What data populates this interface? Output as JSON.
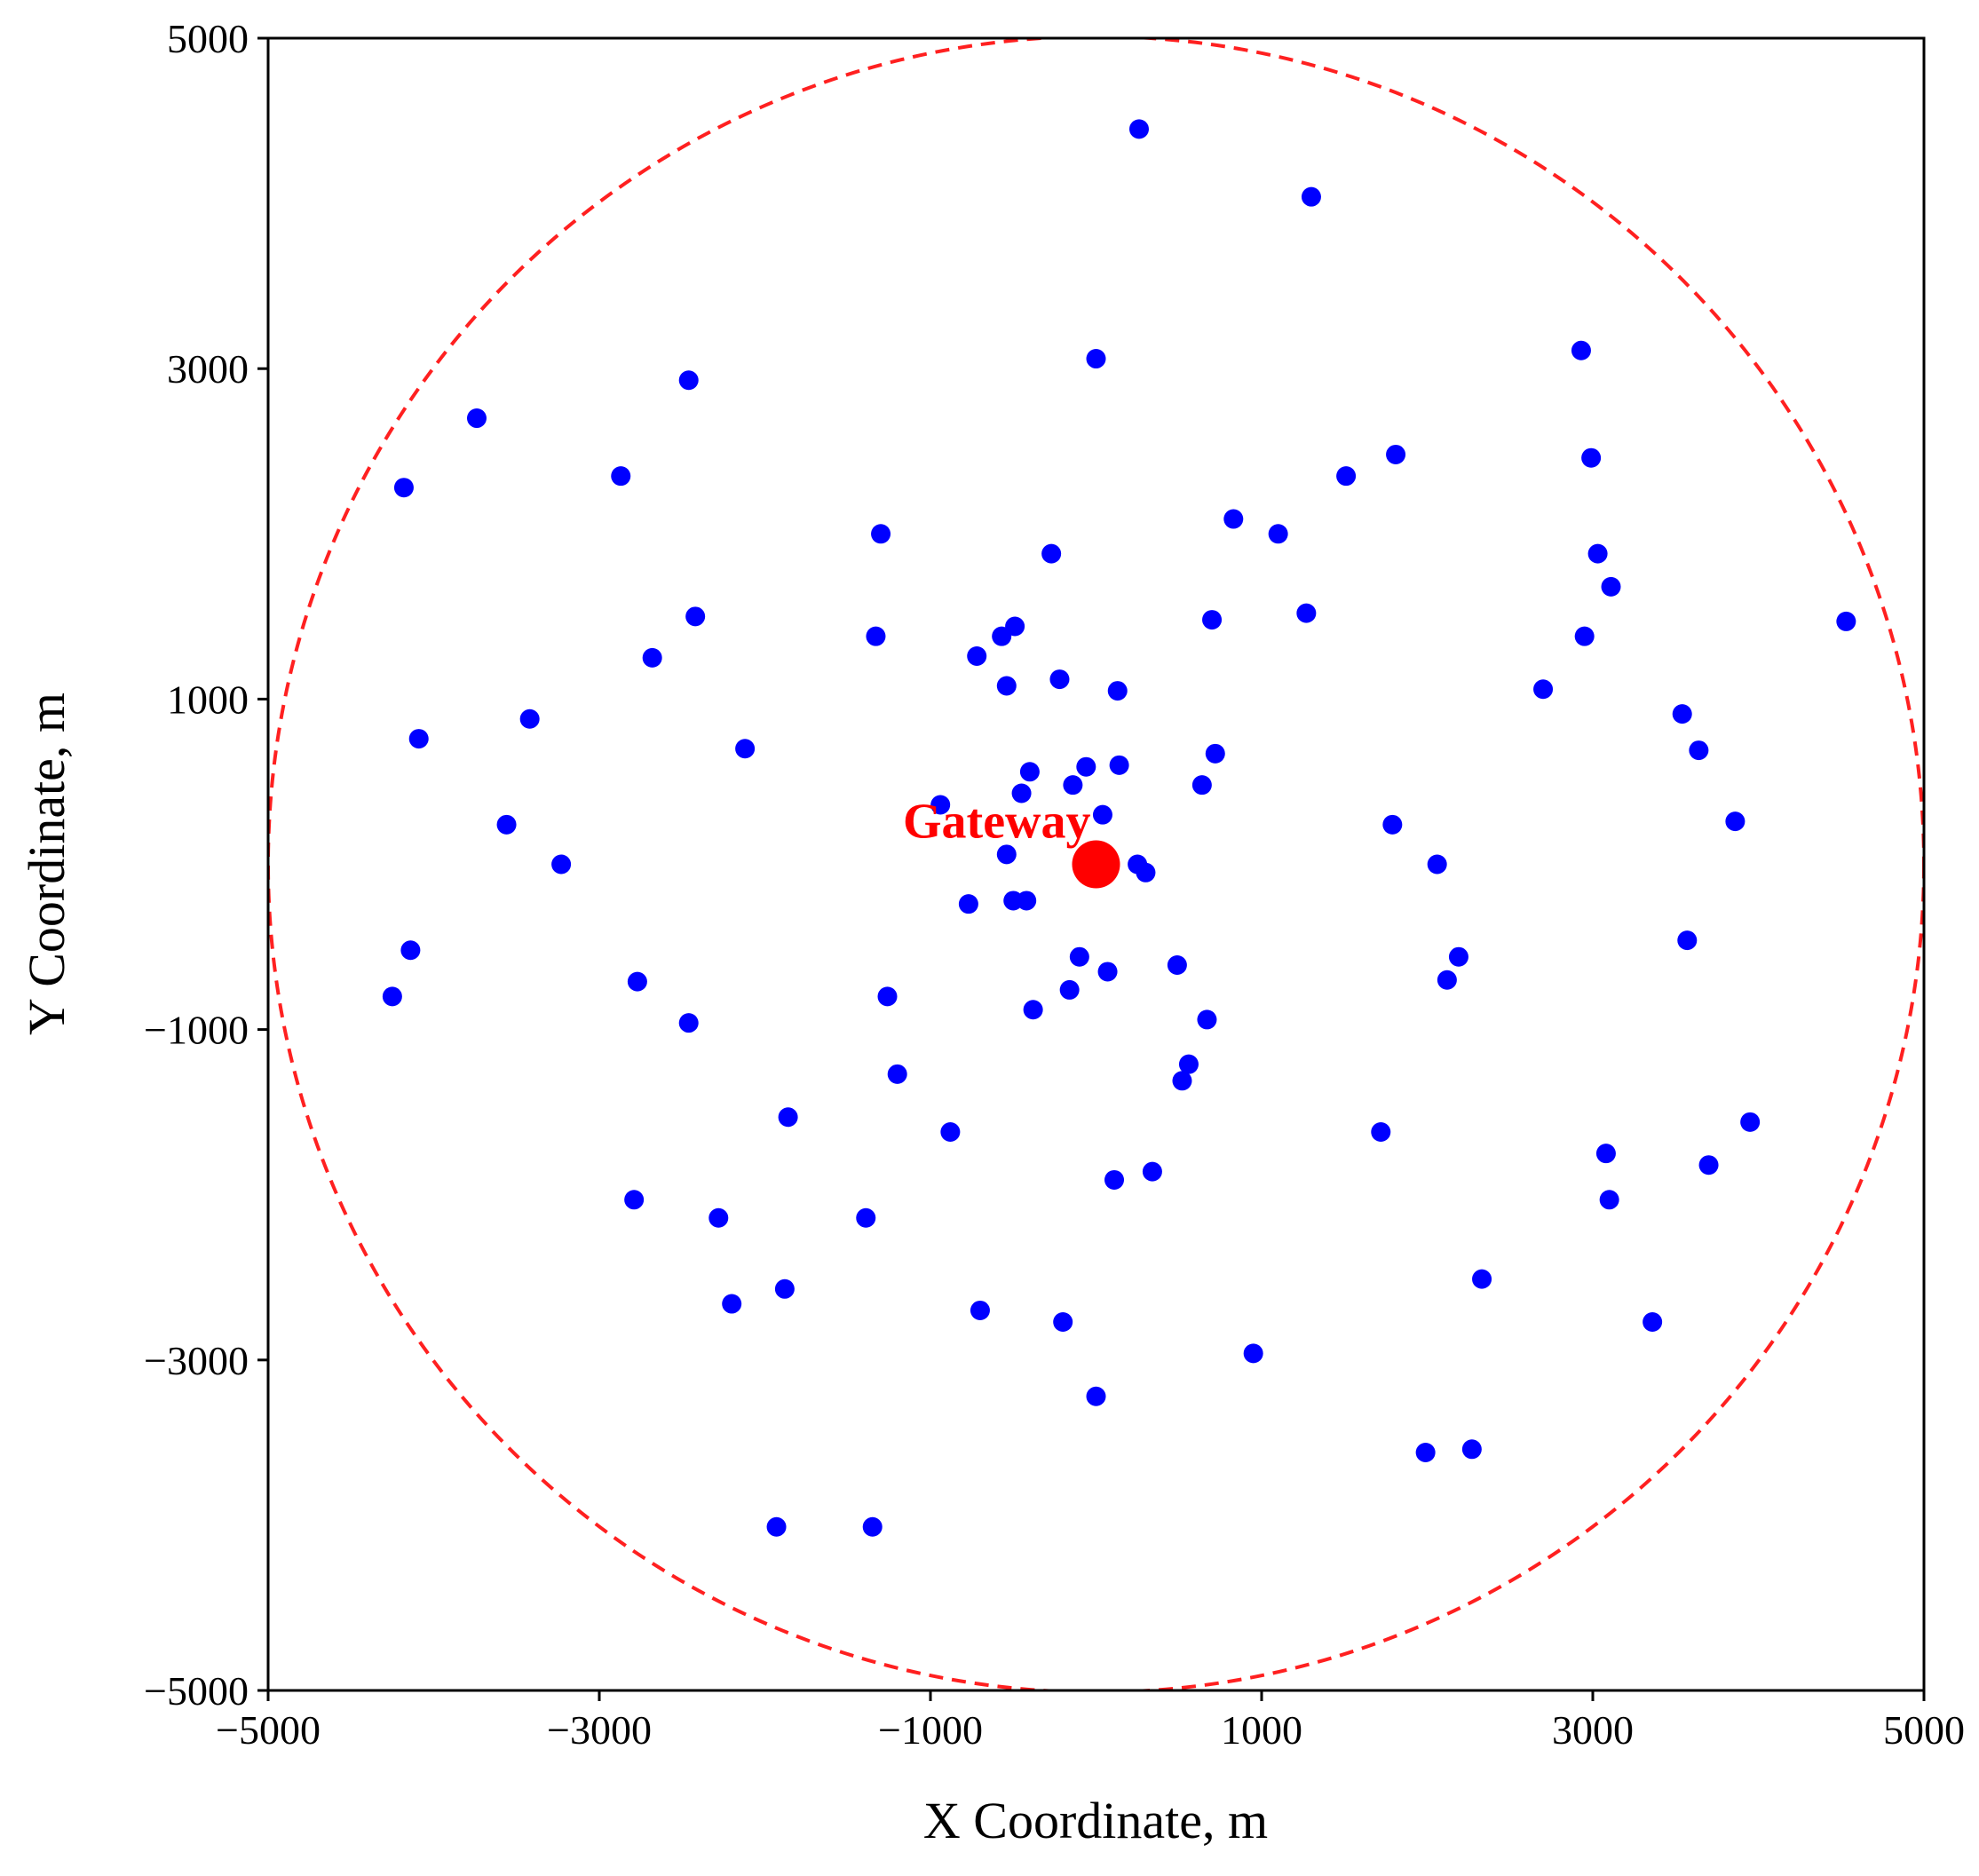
{
  "chart_data": {
    "type": "scatter",
    "xlabel": "X Coordinate, m",
    "ylabel": "Y Coordinate, m",
    "xlim": [
      -5000,
      5000
    ],
    "ylim": [
      -5000,
      5000
    ],
    "xticks": [
      -5000,
      -3000,
      -1000,
      1000,
      3000,
      5000
    ],
    "yticks": [
      -5000,
      -3000,
      -1000,
      1000,
      3000,
      5000
    ],
    "xtick_labels": [
      "−5000",
      "−3000",
      "−1000",
      "1000",
      "3000",
      "5000"
    ],
    "ytick_labels": [
      "−5000",
      "−3000",
      "−1000",
      "1000",
      "3000",
      "5000"
    ],
    "grid": false,
    "boundary_circle": {
      "center": [
        0,
        0
      ],
      "radius": 5000,
      "color": "#ff2020",
      "style": "dashed"
    },
    "gateway": {
      "label": "Gateway",
      "x": 0,
      "y": 0,
      "color": "#ff0000"
    },
    "nodes": {
      "color": "#0000ff",
      "points": [
        [
          260,
          4450
        ],
        [
          1300,
          4040
        ],
        [
          0,
          3060
        ],
        [
          2930,
          3110
        ],
        [
          -2460,
          2930
        ],
        [
          -3740,
          2700
        ],
        [
          -4180,
          2280
        ],
        [
          -2870,
          2350
        ],
        [
          1810,
          2480
        ],
        [
          1510,
          2350
        ],
        [
          2990,
          2460
        ],
        [
          830,
          2090
        ],
        [
          1100,
          2000
        ],
        [
          -1300,
          2000
        ],
        [
          -270,
          1880
        ],
        [
          3030,
          1880
        ],
        [
          3110,
          1680
        ],
        [
          -2420,
          1500
        ],
        [
          -2680,
          1250
        ],
        [
          -1330,
          1380
        ],
        [
          -720,
          1260
        ],
        [
          -570,
          1380
        ],
        [
          -490,
          1440
        ],
        [
          700,
          1480
        ],
        [
          1270,
          1520
        ],
        [
          2950,
          1380
        ],
        [
          4530,
          1470
        ],
        [
          -540,
          1080
        ],
        [
          -220,
          1120
        ],
        [
          130,
          1050
        ],
        [
          2700,
          1060
        ],
        [
          -4090,
          760
        ],
        [
          -3420,
          880
        ],
        [
          -2120,
          700
        ],
        [
          -400,
          560
        ],
        [
          -60,
          590
        ],
        [
          140,
          600
        ],
        [
          720,
          670
        ],
        [
          3540,
          910
        ],
        [
          3640,
          690
        ],
        [
          -450,
          430
        ],
        [
          -140,
          480
        ],
        [
          640,
          480
        ],
        [
          -940,
          360
        ],
        [
          40,
          300
        ],
        [
          -3560,
          240
        ],
        [
          -3230,
          0
        ],
        [
          1790,
          240
        ],
        [
          3860,
          260
        ],
        [
          -540,
          60
        ],
        [
          250,
          0
        ],
        [
          300,
          -50
        ],
        [
          2060,
          0
        ],
        [
          -770,
          -240
        ],
        [
          -500,
          -220
        ],
        [
          -420,
          -220
        ],
        [
          -4140,
          -520
        ],
        [
          -4250,
          -800
        ],
        [
          -2770,
          -710
        ],
        [
          -2460,
          -960
        ],
        [
          -1260,
          -800
        ],
        [
          -100,
          -560
        ],
        [
          70,
          -650
        ],
        [
          -160,
          -760
        ],
        [
          -380,
          -880
        ],
        [
          490,
          -610
        ],
        [
          670,
          -940
        ],
        [
          2190,
          -560
        ],
        [
          2120,
          -700
        ],
        [
          3570,
          -460
        ],
        [
          -1200,
          -1270
        ],
        [
          -1860,
          -1530
        ],
        [
          -880,
          -1620
        ],
        [
          560,
          -1210
        ],
        [
          520,
          -1310
        ],
        [
          1720,
          -1620
        ],
        [
          3080,
          -1750
        ],
        [
          3700,
          -1820
        ],
        [
          3950,
          -1560
        ],
        [
          -2790,
          -2030
        ],
        [
          -2280,
          -2140
        ],
        [
          -1390,
          -2140
        ],
        [
          110,
          -1910
        ],
        [
          340,
          -1860
        ],
        [
          3100,
          -2030
        ],
        [
          -2200,
          -2660
        ],
        [
          -1880,
          -2570
        ],
        [
          -700,
          -2700
        ],
        [
          -200,
          -2770
        ],
        [
          2330,
          -2510
        ],
        [
          3360,
          -2770
        ],
        [
          950,
          -2960
        ],
        [
          0,
          -3220
        ],
        [
          1990,
          -3560
        ],
        [
          2270,
          -3540
        ],
        [
          -1930,
          -4010
        ],
        [
          -1350,
          -4010
        ]
      ]
    }
  }
}
